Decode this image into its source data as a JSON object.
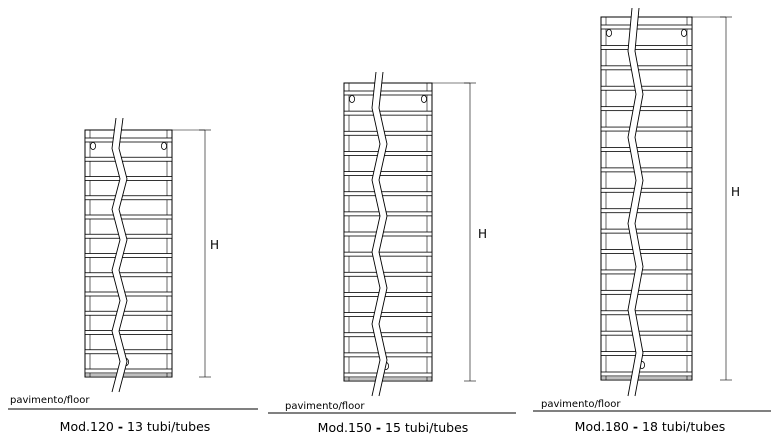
{
  "diagrams": [
    {
      "floor_label": "pavimento/floor",
      "height_label": "H",
      "caption_model": "Mod.120",
      "caption_sep": "-",
      "caption_tubes": "13 tubi/tubes",
      "tubes": 13
    },
    {
      "floor_label": "pavimento/floor",
      "height_label": "H",
      "caption_model": "Mod.150",
      "caption_sep": "-",
      "caption_tubes": "15 tubi/tubes",
      "tubes": 15
    },
    {
      "floor_label": "pavimento/floor",
      "height_label": "H",
      "caption_model": "Mod.180",
      "caption_sep": "-",
      "caption_tubes": "18 tubi/tubes",
      "tubes": 18
    }
  ]
}
